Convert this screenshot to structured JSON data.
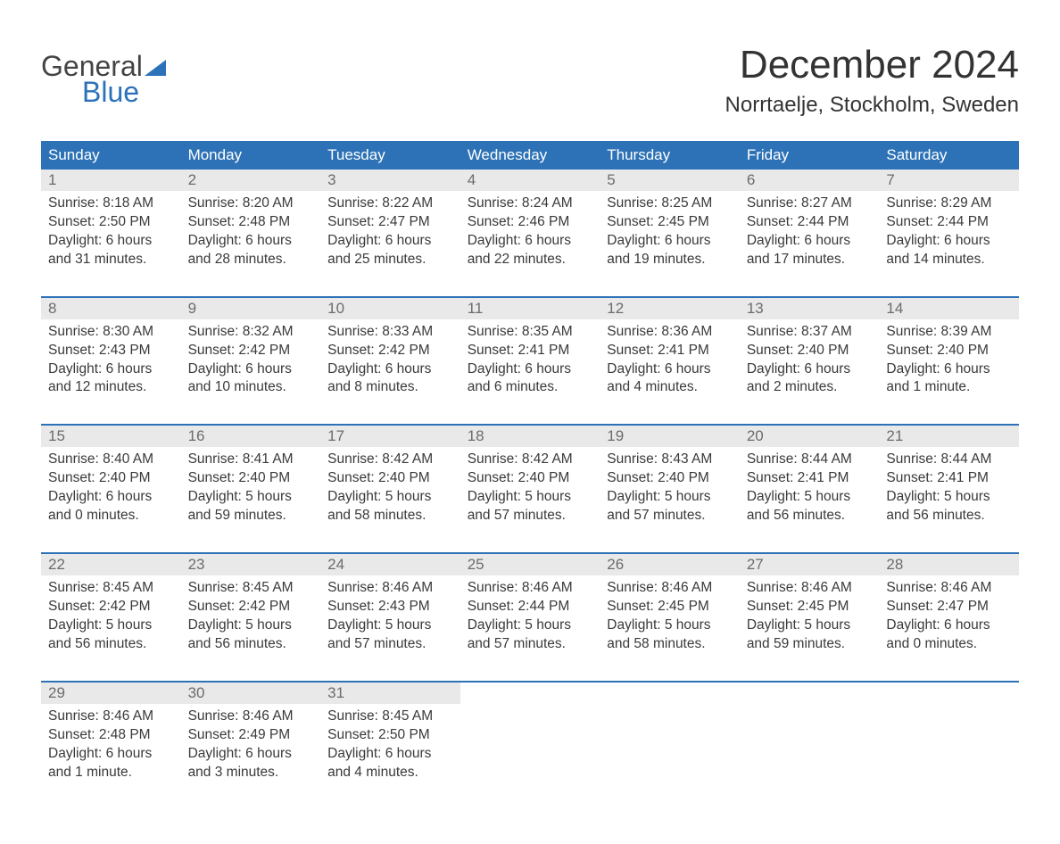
{
  "brand": {
    "word1": "General",
    "word2": "Blue",
    "word1_color": "#444444",
    "word2_color": "#2b72b8",
    "shape_color": "#2b72b8"
  },
  "title": "December 2024",
  "location": "Norrtaelje, Stockholm, Sweden",
  "colors": {
    "header_bg": "#2d72b6",
    "header_text": "#ffffff",
    "daynum_bg": "#e9e9e9",
    "daynum_text": "#6c6c6c",
    "body_text": "#3a3a3a",
    "page_bg": "#ffffff",
    "week_separator": "#2d72b6"
  },
  "typography": {
    "month_title_fontsize": 44,
    "location_fontsize": 24,
    "weekday_fontsize": 17,
    "daynum_fontsize": 17,
    "daytext_fontsize": 15.5,
    "font_family": "Arial"
  },
  "weekdays": [
    "Sunday",
    "Monday",
    "Tuesday",
    "Wednesday",
    "Thursday",
    "Friday",
    "Saturday"
  ],
  "weeks": [
    [
      {
        "n": "1",
        "sunrise": "Sunrise: 8:18 AM",
        "sunset": "Sunset: 2:50 PM",
        "dl1": "Daylight: 6 hours",
        "dl2": "and 31 minutes."
      },
      {
        "n": "2",
        "sunrise": "Sunrise: 8:20 AM",
        "sunset": "Sunset: 2:48 PM",
        "dl1": "Daylight: 6 hours",
        "dl2": "and 28 minutes."
      },
      {
        "n": "3",
        "sunrise": "Sunrise: 8:22 AM",
        "sunset": "Sunset: 2:47 PM",
        "dl1": "Daylight: 6 hours",
        "dl2": "and 25 minutes."
      },
      {
        "n": "4",
        "sunrise": "Sunrise: 8:24 AM",
        "sunset": "Sunset: 2:46 PM",
        "dl1": "Daylight: 6 hours",
        "dl2": "and 22 minutes."
      },
      {
        "n": "5",
        "sunrise": "Sunrise: 8:25 AM",
        "sunset": "Sunset: 2:45 PM",
        "dl1": "Daylight: 6 hours",
        "dl2": "and 19 minutes."
      },
      {
        "n": "6",
        "sunrise": "Sunrise: 8:27 AM",
        "sunset": "Sunset: 2:44 PM",
        "dl1": "Daylight: 6 hours",
        "dl2": "and 17 minutes."
      },
      {
        "n": "7",
        "sunrise": "Sunrise: 8:29 AM",
        "sunset": "Sunset: 2:44 PM",
        "dl1": "Daylight: 6 hours",
        "dl2": "and 14 minutes."
      }
    ],
    [
      {
        "n": "8",
        "sunrise": "Sunrise: 8:30 AM",
        "sunset": "Sunset: 2:43 PM",
        "dl1": "Daylight: 6 hours",
        "dl2": "and 12 minutes."
      },
      {
        "n": "9",
        "sunrise": "Sunrise: 8:32 AM",
        "sunset": "Sunset: 2:42 PM",
        "dl1": "Daylight: 6 hours",
        "dl2": "and 10 minutes."
      },
      {
        "n": "10",
        "sunrise": "Sunrise: 8:33 AM",
        "sunset": "Sunset: 2:42 PM",
        "dl1": "Daylight: 6 hours",
        "dl2": "and 8 minutes."
      },
      {
        "n": "11",
        "sunrise": "Sunrise: 8:35 AM",
        "sunset": "Sunset: 2:41 PM",
        "dl1": "Daylight: 6 hours",
        "dl2": "and 6 minutes."
      },
      {
        "n": "12",
        "sunrise": "Sunrise: 8:36 AM",
        "sunset": "Sunset: 2:41 PM",
        "dl1": "Daylight: 6 hours",
        "dl2": "and 4 minutes."
      },
      {
        "n": "13",
        "sunrise": "Sunrise: 8:37 AM",
        "sunset": "Sunset: 2:40 PM",
        "dl1": "Daylight: 6 hours",
        "dl2": "and 2 minutes."
      },
      {
        "n": "14",
        "sunrise": "Sunrise: 8:39 AM",
        "sunset": "Sunset: 2:40 PM",
        "dl1": "Daylight: 6 hours",
        "dl2": "and 1 minute."
      }
    ],
    [
      {
        "n": "15",
        "sunrise": "Sunrise: 8:40 AM",
        "sunset": "Sunset: 2:40 PM",
        "dl1": "Daylight: 6 hours",
        "dl2": "and 0 minutes."
      },
      {
        "n": "16",
        "sunrise": "Sunrise: 8:41 AM",
        "sunset": "Sunset: 2:40 PM",
        "dl1": "Daylight: 5 hours",
        "dl2": "and 59 minutes."
      },
      {
        "n": "17",
        "sunrise": "Sunrise: 8:42 AM",
        "sunset": "Sunset: 2:40 PM",
        "dl1": "Daylight: 5 hours",
        "dl2": "and 58 minutes."
      },
      {
        "n": "18",
        "sunrise": "Sunrise: 8:42 AM",
        "sunset": "Sunset: 2:40 PM",
        "dl1": "Daylight: 5 hours",
        "dl2": "and 57 minutes."
      },
      {
        "n": "19",
        "sunrise": "Sunrise: 8:43 AM",
        "sunset": "Sunset: 2:40 PM",
        "dl1": "Daylight: 5 hours",
        "dl2": "and 57 minutes."
      },
      {
        "n": "20",
        "sunrise": "Sunrise: 8:44 AM",
        "sunset": "Sunset: 2:41 PM",
        "dl1": "Daylight: 5 hours",
        "dl2": "and 56 minutes."
      },
      {
        "n": "21",
        "sunrise": "Sunrise: 8:44 AM",
        "sunset": "Sunset: 2:41 PM",
        "dl1": "Daylight: 5 hours",
        "dl2": "and 56 minutes."
      }
    ],
    [
      {
        "n": "22",
        "sunrise": "Sunrise: 8:45 AM",
        "sunset": "Sunset: 2:42 PM",
        "dl1": "Daylight: 5 hours",
        "dl2": "and 56 minutes."
      },
      {
        "n": "23",
        "sunrise": "Sunrise: 8:45 AM",
        "sunset": "Sunset: 2:42 PM",
        "dl1": "Daylight: 5 hours",
        "dl2": "and 56 minutes."
      },
      {
        "n": "24",
        "sunrise": "Sunrise: 8:46 AM",
        "sunset": "Sunset: 2:43 PM",
        "dl1": "Daylight: 5 hours",
        "dl2": "and 57 minutes."
      },
      {
        "n": "25",
        "sunrise": "Sunrise: 8:46 AM",
        "sunset": "Sunset: 2:44 PM",
        "dl1": "Daylight: 5 hours",
        "dl2": "and 57 minutes."
      },
      {
        "n": "26",
        "sunrise": "Sunrise: 8:46 AM",
        "sunset": "Sunset: 2:45 PM",
        "dl1": "Daylight: 5 hours",
        "dl2": "and 58 minutes."
      },
      {
        "n": "27",
        "sunrise": "Sunrise: 8:46 AM",
        "sunset": "Sunset: 2:45 PM",
        "dl1": "Daylight: 5 hours",
        "dl2": "and 59 minutes."
      },
      {
        "n": "28",
        "sunrise": "Sunrise: 8:46 AM",
        "sunset": "Sunset: 2:47 PM",
        "dl1": "Daylight: 6 hours",
        "dl2": "and 0 minutes."
      }
    ],
    [
      {
        "n": "29",
        "sunrise": "Sunrise: 8:46 AM",
        "sunset": "Sunset: 2:48 PM",
        "dl1": "Daylight: 6 hours",
        "dl2": "and 1 minute."
      },
      {
        "n": "30",
        "sunrise": "Sunrise: 8:46 AM",
        "sunset": "Sunset: 2:49 PM",
        "dl1": "Daylight: 6 hours",
        "dl2": "and 3 minutes."
      },
      {
        "n": "31",
        "sunrise": "Sunrise: 8:45 AM",
        "sunset": "Sunset: 2:50 PM",
        "dl1": "Daylight: 6 hours",
        "dl2": "and 4 minutes."
      },
      null,
      null,
      null,
      null
    ]
  ]
}
